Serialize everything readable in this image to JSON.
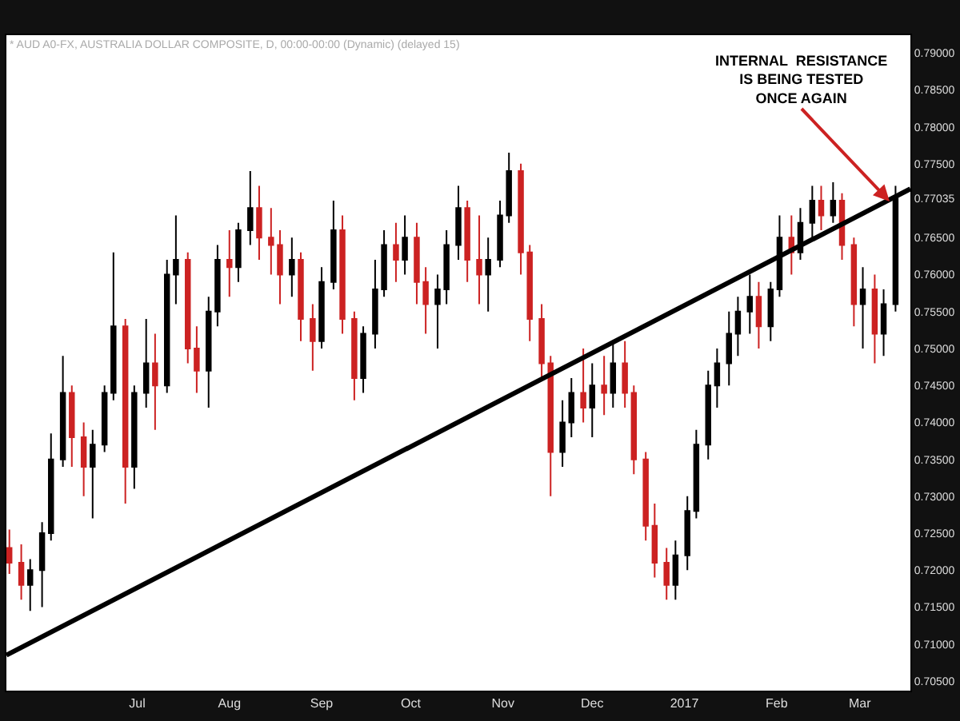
{
  "chart_data": {
    "type": "candlestick",
    "subtitle": "* AUD A0-FX, AUSTRALIA DOLLAR COMPOSITE, D, 00:00-00:00 (Dynamic) (delayed 15)",
    "x": [
      "2016-05-19",
      "2016-05-23",
      "2016-05-26",
      "2016-05-30",
      "2016-06-02",
      "2016-06-06",
      "2016-06-09",
      "2016-06-13",
      "2016-06-16",
      "2016-06-20",
      "2016-06-23",
      "2016-06-27",
      "2016-06-30",
      "2016-07-04",
      "2016-07-07",
      "2016-07-11",
      "2016-07-14",
      "2016-07-18",
      "2016-07-21",
      "2016-07-25",
      "2016-07-28",
      "2016-08-01",
      "2016-08-04",
      "2016-08-08",
      "2016-08-11",
      "2016-08-15",
      "2016-08-18",
      "2016-08-22",
      "2016-08-25",
      "2016-08-29",
      "2016-09-01",
      "2016-09-05",
      "2016-09-08",
      "2016-09-12",
      "2016-09-15",
      "2016-09-19",
      "2016-09-22",
      "2016-09-26",
      "2016-09-29",
      "2016-10-03",
      "2016-10-06",
      "2016-10-10",
      "2016-10-13",
      "2016-10-17",
      "2016-10-20",
      "2016-10-24",
      "2016-10-27",
      "2016-10-31",
      "2016-11-03",
      "2016-11-07",
      "2016-11-10",
      "2016-11-14",
      "2016-11-17",
      "2016-11-21",
      "2016-11-24",
      "2016-11-28",
      "2016-12-01",
      "2016-12-05",
      "2016-12-08",
      "2016-12-12",
      "2016-12-15",
      "2016-12-19",
      "2016-12-22",
      "2016-12-26",
      "2016-12-29",
      "2017-01-02",
      "2017-01-05",
      "2017-01-09",
      "2017-01-12",
      "2017-01-16",
      "2017-01-19",
      "2017-01-23",
      "2017-01-26",
      "2017-01-30",
      "2017-02-02",
      "2017-02-06",
      "2017-02-09",
      "2017-02-13",
      "2017-02-16",
      "2017-02-20",
      "2017-02-23",
      "2017-02-27",
      "2017-03-02",
      "2017-03-06",
      "2017-03-09",
      "2017-03-13"
    ],
    "ohlc": [
      [
        0.723,
        0.7255,
        0.7195,
        0.721
      ],
      [
        0.721,
        0.7235,
        0.716,
        0.718
      ],
      [
        0.718,
        0.7215,
        0.7145,
        0.72
      ],
      [
        0.72,
        0.7265,
        0.715,
        0.725
      ],
      [
        0.725,
        0.7385,
        0.724,
        0.735
      ],
      [
        0.735,
        0.749,
        0.734,
        0.744
      ],
      [
        0.744,
        0.745,
        0.734,
        0.738
      ],
      [
        0.738,
        0.74,
        0.73,
        0.734
      ],
      [
        0.734,
        0.739,
        0.727,
        0.737
      ],
      [
        0.737,
        0.745,
        0.736,
        0.744
      ],
      [
        0.744,
        0.763,
        0.743,
        0.753
      ],
      [
        0.753,
        0.754,
        0.729,
        0.734
      ],
      [
        0.734,
        0.745,
        0.731,
        0.744
      ],
      [
        0.744,
        0.754,
        0.742,
        0.748
      ],
      [
        0.748,
        0.752,
        0.739,
        0.745
      ],
      [
        0.745,
        0.762,
        0.744,
        0.76
      ],
      [
        0.76,
        0.768,
        0.756,
        0.762
      ],
      [
        0.762,
        0.763,
        0.748,
        0.75
      ],
      [
        0.75,
        0.753,
        0.744,
        0.747
      ],
      [
        0.747,
        0.757,
        0.742,
        0.755
      ],
      [
        0.755,
        0.764,
        0.753,
        0.762
      ],
      [
        0.762,
        0.766,
        0.757,
        0.761
      ],
      [
        0.761,
        0.767,
        0.759,
        0.766
      ],
      [
        0.766,
        0.774,
        0.764,
        0.769
      ],
      [
        0.769,
        0.772,
        0.762,
        0.765
      ],
      [
        0.765,
        0.769,
        0.76,
        0.764
      ],
      [
        0.764,
        0.766,
        0.756,
        0.76
      ],
      [
        0.76,
        0.765,
        0.757,
        0.762
      ],
      [
        0.762,
        0.763,
        0.751,
        0.754
      ],
      [
        0.754,
        0.756,
        0.747,
        0.751
      ],
      [
        0.751,
        0.761,
        0.75,
        0.759
      ],
      [
        0.759,
        0.77,
        0.758,
        0.766
      ],
      [
        0.766,
        0.768,
        0.752,
        0.754
      ],
      [
        0.754,
        0.755,
        0.743,
        0.746
      ],
      [
        0.746,
        0.753,
        0.744,
        0.752
      ],
      [
        0.752,
        0.762,
        0.75,
        0.758
      ],
      [
        0.758,
        0.766,
        0.757,
        0.764
      ],
      [
        0.764,
        0.767,
        0.759,
        0.762
      ],
      [
        0.762,
        0.768,
        0.76,
        0.765
      ],
      [
        0.765,
        0.767,
        0.756,
        0.759
      ],
      [
        0.759,
        0.761,
        0.752,
        0.756
      ],
      [
        0.756,
        0.76,
        0.75,
        0.758
      ],
      [
        0.758,
        0.766,
        0.756,
        0.764
      ],
      [
        0.764,
        0.772,
        0.762,
        0.769
      ],
      [
        0.769,
        0.77,
        0.759,
        0.762
      ],
      [
        0.762,
        0.768,
        0.756,
        0.76
      ],
      [
        0.76,
        0.765,
        0.755,
        0.762
      ],
      [
        0.762,
        0.77,
        0.761,
        0.768
      ],
      [
        0.768,
        0.7765,
        0.767,
        0.774
      ],
      [
        0.774,
        0.775,
        0.76,
        0.763
      ],
      [
        0.763,
        0.764,
        0.751,
        0.754
      ],
      [
        0.754,
        0.756,
        0.746,
        0.748
      ],
      [
        0.748,
        0.749,
        0.73,
        0.736
      ],
      [
        0.736,
        0.743,
        0.734,
        0.74
      ],
      [
        0.74,
        0.746,
        0.738,
        0.744
      ],
      [
        0.744,
        0.75,
        0.74,
        0.742
      ],
      [
        0.742,
        0.748,
        0.738,
        0.745
      ],
      [
        0.745,
        0.749,
        0.741,
        0.744
      ],
      [
        0.744,
        0.751,
        0.742,
        0.748
      ],
      [
        0.748,
        0.751,
        0.742,
        0.744
      ],
      [
        0.744,
        0.745,
        0.733,
        0.735
      ],
      [
        0.735,
        0.736,
        0.724,
        0.726
      ],
      [
        0.726,
        0.729,
        0.719,
        0.721
      ],
      [
        0.721,
        0.723,
        0.716,
        0.718
      ],
      [
        0.718,
        0.724,
        0.716,
        0.722
      ],
      [
        0.722,
        0.73,
        0.72,
        0.728
      ],
      [
        0.728,
        0.739,
        0.727,
        0.737
      ],
      [
        0.737,
        0.747,
        0.735,
        0.745
      ],
      [
        0.745,
        0.75,
        0.742,
        0.748
      ],
      [
        0.748,
        0.755,
        0.745,
        0.752
      ],
      [
        0.752,
        0.757,
        0.749,
        0.755
      ],
      [
        0.755,
        0.76,
        0.752,
        0.757
      ],
      [
        0.757,
        0.759,
        0.75,
        0.753
      ],
      [
        0.753,
        0.759,
        0.751,
        0.758
      ],
      [
        0.758,
        0.768,
        0.757,
        0.765
      ],
      [
        0.765,
        0.768,
        0.76,
        0.763
      ],
      [
        0.763,
        0.769,
        0.762,
        0.767
      ],
      [
        0.767,
        0.772,
        0.765,
        0.77
      ],
      [
        0.77,
        0.772,
        0.766,
        0.768
      ],
      [
        0.768,
        0.7725,
        0.767,
        0.77
      ],
      [
        0.77,
        0.771,
        0.762,
        0.764
      ],
      [
        0.764,
        0.765,
        0.753,
        0.756
      ],
      [
        0.756,
        0.761,
        0.75,
        0.758
      ],
      [
        0.758,
        0.76,
        0.748,
        0.752
      ],
      [
        0.752,
        0.758,
        0.749,
        0.756
      ],
      [
        0.756,
        0.772,
        0.755,
        0.77035
      ]
    ],
    "series": [
      {
        "type": "line",
        "color": "#000000",
        "x": [
          "2016-05-18",
          "2017-03-18"
        ],
        "values": [
          0.7085,
          0.7716
        ]
      }
    ],
    "colors": [
      "#cc2222",
      "#cc2222",
      "#000000",
      "#000000",
      "#000000",
      "#000000",
      "#cc2222",
      "#cc2222",
      "#000000",
      "#000000",
      "#000000",
      "#cc2222",
      "#000000",
      "#000000",
      "#cc2222",
      "#000000",
      "#000000",
      "#cc2222",
      "#cc2222",
      "#000000",
      "#000000",
      "#cc2222",
      "#000000",
      "#000000",
      "#cc2222",
      "#cc2222",
      "#cc2222",
      "#000000",
      "#cc2222",
      "#cc2222",
      "#000000",
      "#000000",
      "#cc2222",
      "#cc2222",
      "#000000",
      "#000000",
      "#000000",
      "#cc2222",
      "#000000",
      "#cc2222",
      "#cc2222",
      "#000000",
      "#000000",
      "#000000",
      "#cc2222",
      "#cc2222",
      "#000000",
      "#000000",
      "#000000",
      "#cc2222",
      "#cc2222",
      "#cc2222",
      "#cc2222",
      "#000000",
      "#000000",
      "#cc2222",
      "#000000",
      "#cc2222",
      "#000000",
      "#cc2222",
      "#cc2222",
      "#cc2222",
      "#cc2222",
      "#cc2222",
      "#000000",
      "#000000",
      "#000000",
      "#000000",
      "#000000",
      "#000000",
      "#000000",
      "#000000",
      "#cc2222",
      "#000000",
      "#000000",
      "#cc2222",
      "#000000",
      "#000000",
      "#cc2222",
      "#000000",
      "#cc2222",
      "#cc2222",
      "#000000",
      "#cc2222",
      "#000000",
      "#000000"
    ],
    "annotations": [
      {
        "text": "INTERNAL  RESISTANCE\nIS BEING TESTED\nONCE AGAIN",
        "x": "2017-03-11",
        "y": 0.7699
      }
    ],
    "xlim": [
      "2016-05-18",
      "2017-03-18"
    ],
    "xticks": [
      {
        "value": "2016-07-01",
        "label": "Jul"
      },
      {
        "value": "2016-08-01",
        "label": "Aug"
      },
      {
        "value": "2016-09-01",
        "label": "Sep"
      },
      {
        "value": "2016-10-01",
        "label": "Oct"
      },
      {
        "value": "2016-11-01",
        "label": "Nov"
      },
      {
        "value": "2016-12-01",
        "label": "Dec"
      },
      {
        "value": "2017-01-01",
        "label": "2017"
      },
      {
        "value": "2017-02-01",
        "label": "Feb"
      },
      {
        "value": "2017-03-01",
        "label": "Mar"
      }
    ],
    "ylim": [
      0.7037,
      0.7924
    ],
    "yticks": [
      {
        "value": 0.705,
        "label": "0.70500"
      },
      {
        "value": 0.71,
        "label": "0.71000"
      },
      {
        "value": 0.715,
        "label": "0.71500"
      },
      {
        "value": 0.72,
        "label": "0.72000"
      },
      {
        "value": 0.725,
        "label": "0.72500"
      },
      {
        "value": 0.73,
        "label": "0.73000"
      },
      {
        "value": 0.735,
        "label": "0.73500"
      },
      {
        "value": 0.74,
        "label": "0.74000"
      },
      {
        "value": 0.745,
        "label": "0.74500"
      },
      {
        "value": 0.75,
        "label": "0.75000"
      },
      {
        "value": 0.755,
        "label": "0.75500"
      },
      {
        "value": 0.76,
        "label": "0.76000"
      },
      {
        "value": 0.765,
        "label": "0.76500"
      },
      {
        "value": 0.77035,
        "label": "0.77035"
      },
      {
        "value": 0.775,
        "label": "0.77500"
      },
      {
        "value": 0.78,
        "label": "0.78000"
      },
      {
        "value": 0.785,
        "label": "0.78500"
      },
      {
        "value": 0.79,
        "label": "0.79000"
      }
    ],
    "grid": false
  }
}
